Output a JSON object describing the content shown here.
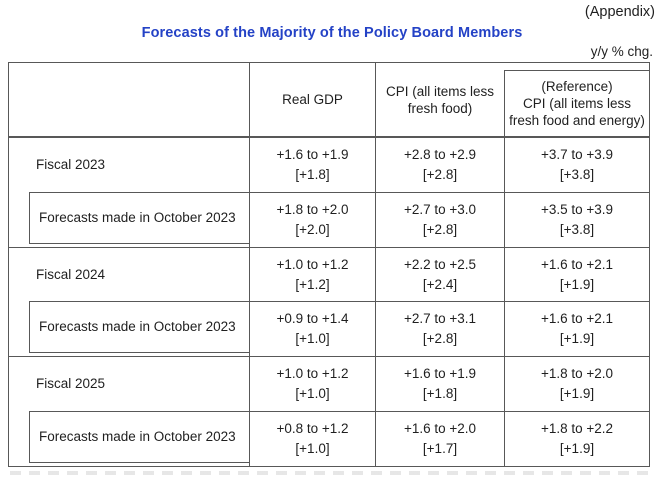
{
  "header": {
    "appendix": "(Appendix)",
    "title": "Forecasts of the Majority of the Policy Board Members",
    "unit": "y/y % chg."
  },
  "colors": {
    "title_blue": "#2442c6",
    "table_line": "#585858",
    "text": "#1f1f1f"
  },
  "table": {
    "columns": {
      "real_gdp": "Real GDP",
      "cpi": "CPI (all items less fresh food)",
      "reference_line1": "(Reference)",
      "reference_line2": "CPI (all items less fresh food and energy)"
    },
    "rows": [
      {
        "label": "Fiscal 2023",
        "gdp_range": "+1.6 to +1.9",
        "gdp_median": "[+1.8]",
        "cpi_range": "+2.8 to +2.9",
        "cpi_median": "[+2.8]",
        "ref_range": "+3.7 to +3.9",
        "ref_median": "[+3.8]"
      },
      {
        "label": "Forecasts made in October 2023",
        "gdp_range": "+1.8 to +2.0",
        "gdp_median": "[+2.0]",
        "cpi_range": "+2.7 to +3.0",
        "cpi_median": "[+2.8]",
        "ref_range": "+3.5 to +3.9",
        "ref_median": "[+3.8]"
      },
      {
        "label": "Fiscal 2024",
        "gdp_range": "+1.0 to +1.2",
        "gdp_median": "[+1.2]",
        "cpi_range": "+2.2 to +2.5",
        "cpi_median": "[+2.4]",
        "ref_range": "+1.6 to +2.1",
        "ref_median": "[+1.9]"
      },
      {
        "label": "Forecasts made in October 2023",
        "gdp_range": "+0.9 to +1.4",
        "gdp_median": "[+1.0]",
        "cpi_range": "+2.7 to +3.1",
        "cpi_median": "[+2.8]",
        "ref_range": "+1.6 to +2.1",
        "ref_median": "[+1.9]"
      },
      {
        "label": "Fiscal 2025",
        "gdp_range": "+1.0 to +1.2",
        "gdp_median": "[+1.0]",
        "cpi_range": "+1.6 to +1.9",
        "cpi_median": "[+1.8]",
        "ref_range": "+1.8 to +2.0",
        "ref_median": "[+1.9]"
      },
      {
        "label": "Forecasts made in October 2023",
        "gdp_range": "+0.8 to +1.2",
        "gdp_median": "[+1.0]",
        "cpi_range": "+1.6 to +2.0",
        "cpi_median": "[+1.7]",
        "ref_range": "+1.8 to +2.2",
        "ref_median": "[+1.9]"
      }
    ]
  }
}
